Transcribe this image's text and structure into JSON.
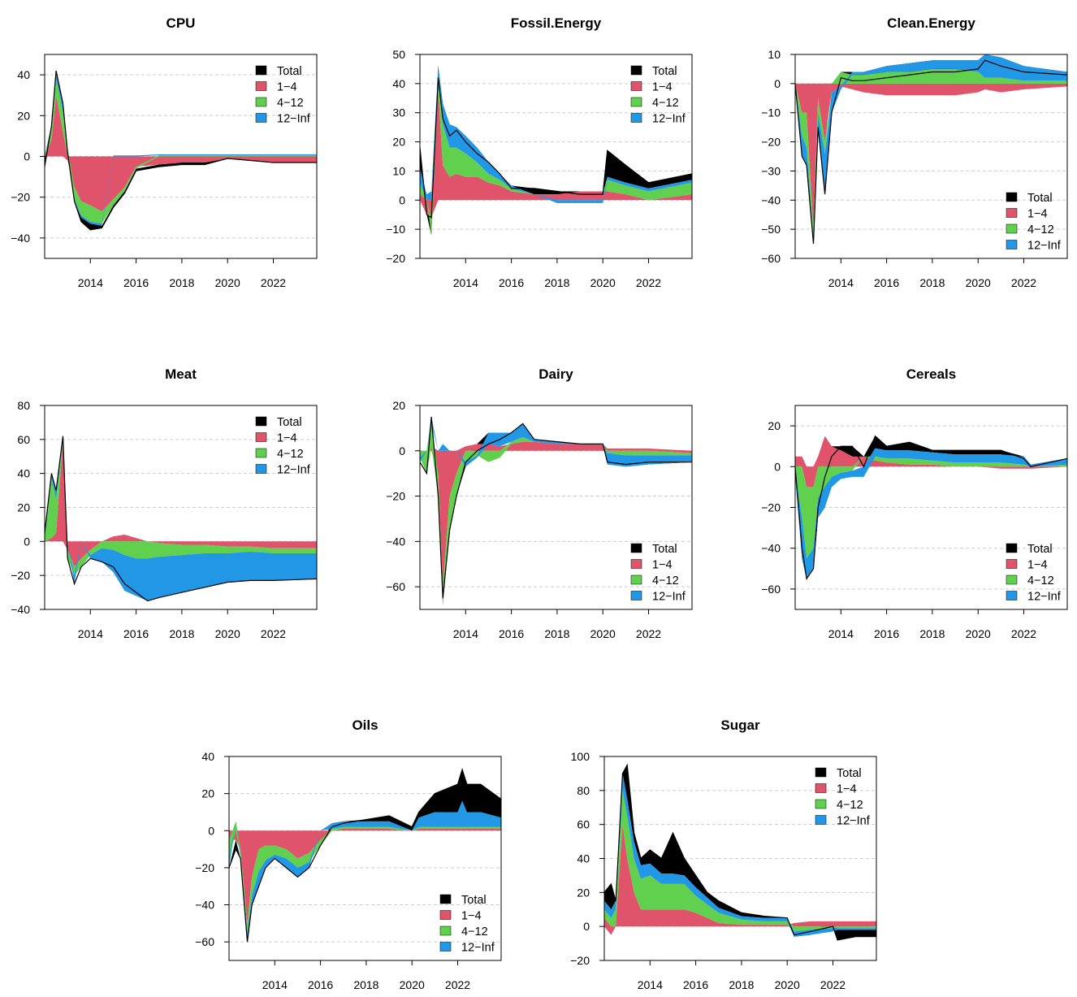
{
  "colors": {
    "Total": "#000000",
    "1-4": "#DF536B",
    "4-12": "#61D04F",
    "12-Inf": "#2297E6",
    "grid": "#CCCCCC"
  },
  "chart_data": [
    {
      "type": "area",
      "title": "CPU",
      "ylim": [
        -50,
        50
      ],
      "yticks": [
        -40,
        -20,
        0,
        20,
        40
      ],
      "xticks": [
        2014,
        2016,
        2018,
        2020,
        2022
      ],
      "xlim": [
        2012.0,
        2023.9
      ],
      "legend_position": "top-right",
      "stacked": true,
      "x": [
        2012.0,
        2012.3,
        2012.5,
        2012.8,
        2013.0,
        2013.3,
        2013.6,
        2014.0,
        2014.5,
        2015.0,
        2015.5,
        2016.0,
        2017.0,
        2018.0,
        2019.0,
        2020.0,
        2021.0,
        2022.0,
        2023.9
      ],
      "series": [
        {
          "name": "Total",
          "values": [
            -5,
            15,
            42,
            26,
            2,
            -22,
            -32,
            -36,
            -35,
            -25,
            -18,
            -7,
            -5,
            -4,
            -4,
            -1,
            -2,
            -3,
            -3
          ]
        },
        {
          "name": "1−4",
          "values": [
            0,
            8,
            30,
            12,
            -2,
            -15,
            -22,
            -24,
            -27,
            -21,
            -15,
            -5,
            -4,
            -3,
            -3,
            -1,
            -2,
            -3,
            -3
          ]
        },
        {
          "name": "4−12",
          "values": [
            0,
            5,
            8,
            10,
            4,
            -6,
            -7,
            -8,
            -6,
            -3,
            -2,
            -1,
            0.5,
            0.5,
            0.5,
            0.5,
            0.5,
            0.5,
            0.5
          ]
        },
        {
          "name": "12−Inf",
          "values": [
            0,
            2,
            4,
            4,
            0,
            -1,
            -1,
            -1,
            -1,
            0.5,
            0.5,
            0.5,
            0.5,
            0.5,
            0.5,
            0.5,
            0.5,
            0.5,
            0.5
          ]
        }
      ]
    },
    {
      "type": "area",
      "title": "Fossil.Energy",
      "ylim": [
        -20,
        50
      ],
      "yticks": [
        -20,
        -10,
        0,
        10,
        20,
        30,
        40,
        50
      ],
      "xticks": [
        2014,
        2016,
        2018,
        2020,
        2022
      ],
      "xlim": [
        2012.0,
        2023.9
      ],
      "legend_position": "top-right",
      "stacked": true,
      "x": [
        2012.0,
        2012.3,
        2012.5,
        2012.8,
        2013.0,
        2013.3,
        2013.6,
        2014.0,
        2014.5,
        2015.0,
        2015.5,
        2016.0,
        2017.0,
        2018.0,
        2019.0,
        2020.0,
        2020.2,
        2021.0,
        2022.0,
        2023.9
      ],
      "series": [
        {
          "name": "Total",
          "values": [
            18,
            -5,
            -6,
            42,
            28,
            22,
            24,
            20,
            16,
            13,
            9,
            4,
            4,
            3,
            2,
            2,
            17,
            12,
            6,
            9
          ]
        },
        {
          "name": "1−4",
          "values": [
            2,
            -5,
            -6,
            38,
            12,
            8,
            9,
            8,
            8,
            6,
            5,
            3,
            2,
            2,
            3,
            3,
            3,
            2,
            0,
            2
          ]
        },
        {
          "name": "4−12",
          "values": [
            4,
            0,
            -6,
            4,
            14,
            10,
            9,
            8,
            5,
            3,
            2,
            1,
            0,
            0,
            0,
            0,
            4,
            3,
            3,
            4
          ]
        },
        {
          "name": "12−Inf",
          "values": [
            5,
            2,
            3,
            4,
            7,
            8,
            7,
            6,
            5,
            4,
            2,
            1,
            0,
            -1,
            -1,
            -1,
            1,
            1,
            1,
            1
          ]
        }
      ]
    },
    {
      "type": "area",
      "title": "Clean.Energy",
      "ylim": [
        -60,
        10
      ],
      "yticks": [
        -60,
        -50,
        -40,
        -30,
        -20,
        -10,
        0,
        10
      ],
      "xticks": [
        2014,
        2016,
        2018,
        2020,
        2022
      ],
      "xlim": [
        2012.0,
        2023.9
      ],
      "legend_position": "bottom-right",
      "stacked": true,
      "x": [
        2012.0,
        2012.3,
        2012.5,
        2012.8,
        2013.0,
        2013.3,
        2013.6,
        2014.0,
        2014.5,
        2015.0,
        2016.0,
        2017.0,
        2018.0,
        2019.0,
        2020.0,
        2020.3,
        2021.0,
        2022.0,
        2023.9
      ],
      "series": [
        {
          "name": "Total",
          "values": [
            0,
            -25,
            -28,
            -55,
            -15,
            -38,
            -10,
            2,
            1,
            1,
            2,
            3,
            4,
            4,
            5,
            8,
            6,
            4,
            3
          ]
        },
        {
          "name": "1−4",
          "values": [
            0,
            -10,
            -10,
            -50,
            -5,
            -20,
            -3,
            -1,
            -2,
            -3,
            -4,
            -4,
            -4,
            -4,
            -3,
            -2,
            -3,
            -2,
            -1
          ]
        },
        {
          "name": "4−12",
          "values": [
            0,
            -8,
            -12,
            -4,
            -5,
            -4,
            0,
            4,
            3,
            3,
            4,
            4,
            5,
            5,
            4,
            2,
            2,
            1,
            1
          ]
        },
        {
          "name": "12−Inf",
          "values": [
            0,
            -7,
            -6,
            -1,
            -5,
            -14,
            -7,
            -1,
            1,
            1,
            2,
            3,
            3,
            3,
            4,
            8,
            7,
            5,
            3
          ]
        }
      ]
    },
    {
      "type": "area",
      "title": "Meat",
      "ylim": [
        -40,
        80
      ],
      "yticks": [
        -40,
        -20,
        0,
        20,
        40,
        60,
        80
      ],
      "xticks": [
        2014,
        2016,
        2018,
        2020,
        2022
      ],
      "xlim": [
        2012.0,
        2023.9
      ],
      "legend_position": "top-right",
      "stacked": true,
      "x": [
        2012.0,
        2012.3,
        2012.5,
        2012.8,
        2013.0,
        2013.3,
        2013.6,
        2014.0,
        2014.5,
        2015.0,
        2015.5,
        2016.0,
        2016.5,
        2017.0,
        2018.0,
        2019.0,
        2020.0,
        2021.0,
        2022.0,
        2023.9
      ],
      "series": [
        {
          "name": "Total",
          "values": [
            5,
            40,
            30,
            62,
            -10,
            -25,
            -15,
            -10,
            -12,
            -15,
            -25,
            -30,
            -35,
            -33,
            -30,
            -27,
            -24,
            -23,
            -23,
            -22
          ]
        },
        {
          "name": "1−4",
          "values": [
            0,
            2,
            5,
            60,
            -5,
            -15,
            -10,
            -5,
            0,
            3,
            4,
            2,
            0,
            -1,
            -2,
            -2,
            -3,
            -3,
            -4,
            -4
          ]
        },
        {
          "name": "4−12",
          "values": [
            2,
            35,
            20,
            0,
            -5,
            -5,
            -5,
            -3,
            -4,
            -5,
            -8,
            -10,
            -10,
            -8,
            -6,
            -5,
            -4,
            -3,
            -3,
            -3
          ]
        },
        {
          "name": "12−Inf",
          "values": [
            3,
            3,
            5,
            2,
            0,
            -5,
            0,
            -2,
            -8,
            -13,
            -21,
            -22,
            -25,
            -24,
            -22,
            -20,
            -17,
            -17,
            -16,
            -15
          ]
        }
      ]
    },
    {
      "type": "area",
      "title": "Dairy",
      "ylim": [
        -70,
        20
      ],
      "yticks": [
        -60,
        -40,
        -20,
        0,
        20
      ],
      "xticks": [
        2014,
        2016,
        2018,
        2020,
        2022
      ],
      "xlim": [
        2012.0,
        2023.9
      ],
      "legend_position": "bottom-right",
      "stacked": true,
      "x": [
        2012.0,
        2012.3,
        2012.5,
        2012.8,
        2013.0,
        2013.3,
        2013.6,
        2014.0,
        2014.5,
        2015.0,
        2015.5,
        2016.0,
        2016.5,
        2017.0,
        2018.0,
        2019.0,
        2020.0,
        2020.2,
        2021.0,
        2022.0,
        2023.9
      ],
      "series": [
        {
          "name": "Total",
          "values": [
            -5,
            -10,
            15,
            -20,
            -65,
            -35,
            -20,
            -5,
            0,
            3,
            5,
            8,
            12,
            5,
            4,
            3,
            3,
            -5,
            -6,
            -5,
            -5
          ]
        },
        {
          "name": "1−4",
          "values": [
            0,
            0,
            2,
            -10,
            -60,
            -20,
            -10,
            2,
            3,
            3,
            2,
            3,
            4,
            4,
            3,
            3,
            3,
            1,
            1,
            1,
            -1
          ]
        },
        {
          "name": "4−12",
          "values": [
            -3,
            -10,
            10,
            -10,
            -8,
            -15,
            -10,
            -5,
            -2,
            -5,
            -3,
            1,
            2,
            0,
            0,
            0,
            0,
            -1,
            -2,
            -2,
            -1
          ]
        },
        {
          "name": "12−Inf",
          "values": [
            -2,
            0,
            3,
            0,
            3,
            0,
            0,
            -2,
            -1,
            5,
            6,
            4,
            6,
            1,
            1,
            0,
            0,
            -5,
            -5,
            -4,
            -3
          ]
        }
      ]
    },
    {
      "type": "area",
      "title": "Cereals",
      "ylim": [
        -70,
        30
      ],
      "yticks": [
        -60,
        -40,
        -20,
        0,
        20
      ],
      "xticks": [
        2014,
        2016,
        2018,
        2020,
        2022
      ],
      "xlim": [
        2012.0,
        2023.9
      ],
      "legend_position": "bottom-right",
      "stacked": true,
      "x": [
        2012.0,
        2012.3,
        2012.5,
        2012.8,
        2013.0,
        2013.3,
        2013.6,
        2014.0,
        2014.5,
        2015.0,
        2015.5,
        2016.0,
        2017.0,
        2018.0,
        2019.0,
        2020.0,
        2021.0,
        2022.0,
        2022.3,
        2023.9
      ],
      "series": [
        {
          "name": "Total",
          "values": [
            0,
            -40,
            -55,
            -50,
            -20,
            -5,
            5,
            10,
            10,
            0,
            15,
            10,
            12,
            8,
            8,
            8,
            8,
            4,
            0,
            4
          ]
        },
        {
          "name": "1−4",
          "values": [
            5,
            5,
            -10,
            -10,
            5,
            15,
            10,
            8,
            5,
            5,
            3,
            2,
            1,
            1,
            0,
            0,
            -1,
            -1,
            -1,
            0
          ]
        },
        {
          "name": "4−12",
          "values": [
            -3,
            -25,
            -35,
            -30,
            -15,
            -10,
            -5,
            -3,
            -2,
            0,
            2,
            2,
            3,
            2,
            2,
            2,
            2,
            1,
            0,
            1
          ]
        },
        {
          "name": "12−Inf",
          "values": [
            -2,
            -20,
            -10,
            -10,
            -10,
            -10,
            -5,
            -3,
            -3,
            -5,
            4,
            4,
            4,
            4,
            4,
            4,
            4,
            4,
            1,
            3
          ]
        }
      ]
    },
    {
      "type": "area",
      "title": "Oils",
      "ylim": [
        -70,
        40
      ],
      "yticks": [
        -60,
        -40,
        -20,
        0,
        20,
        40
      ],
      "xticks": [
        2014,
        2016,
        2018,
        2020,
        2022
      ],
      "xlim": [
        2012.0,
        2023.9
      ],
      "legend_position": "bottom-right",
      "stacked": true,
      "x": [
        2012.0,
        2012.3,
        2012.5,
        2012.8,
        2013.0,
        2013.3,
        2013.6,
        2014.0,
        2014.5,
        2015.0,
        2015.5,
        2016.0,
        2016.5,
        2017.0,
        2018.0,
        2019.0,
        2020.0,
        2020.3,
        2021.0,
        2022.0,
        2022.2,
        2022.4,
        2023.0,
        2023.9
      ],
      "series": [
        {
          "name": "Total",
          "values": [
            -20,
            -10,
            -15,
            -60,
            -40,
            -30,
            -20,
            -15,
            -20,
            -25,
            -20,
            -8,
            2,
            4,
            6,
            8,
            2,
            10,
            20,
            25,
            33,
            25,
            25,
            17
          ]
        },
        {
          "name": "1−4",
          "values": [
            -5,
            -5,
            -10,
            -50,
            -25,
            -10,
            -8,
            -8,
            -10,
            -15,
            -12,
            -5,
            0,
            1,
            1,
            1,
            0,
            1,
            1,
            1,
            1,
            1,
            1,
            1
          ]
        },
        {
          "name": "4−12",
          "values": [
            -10,
            5,
            -3,
            -5,
            -10,
            -12,
            -8,
            -5,
            -5,
            -5,
            -5,
            -3,
            1,
            1,
            1,
            1,
            0,
            1,
            1,
            1,
            1,
            1,
            1,
            1
          ]
        },
        {
          "name": "12−Inf",
          "values": [
            -5,
            0,
            -2,
            -5,
            -5,
            -8,
            -4,
            -2,
            -5,
            -5,
            -3,
            0,
            3,
            3,
            3,
            3,
            0,
            5,
            8,
            8,
            14,
            8,
            8,
            5
          ]
        }
      ]
    },
    {
      "type": "area",
      "title": "Sugar",
      "ylim": [
        -20,
        100
      ],
      "yticks": [
        -20,
        0,
        20,
        40,
        60,
        80,
        100
      ],
      "xticks": [
        2014,
        2016,
        2018,
        2020,
        2022
      ],
      "xlim": [
        2012.0,
        2023.9
      ],
      "legend_position": "top-right",
      "stacked": true,
      "x": [
        2012.0,
        2012.3,
        2012.5,
        2012.8,
        2013.0,
        2013.3,
        2013.6,
        2014.0,
        2014.5,
        2015.0,
        2015.5,
        2016.0,
        2016.5,
        2017.0,
        2018.0,
        2019.0,
        2020.0,
        2020.3,
        2021.0,
        2022.0,
        2022.2,
        2023.0,
        2023.9
      ],
      "series": [
        {
          "name": "Total",
          "values": [
            20,
            25,
            15,
            90,
            95,
            55,
            40,
            45,
            40,
            55,
            40,
            30,
            20,
            15,
            8,
            6,
            5,
            -5,
            -3,
            0,
            -8,
            -6,
            -6
          ]
        },
        {
          "name": "1−4",
          "values": [
            5,
            -5,
            0,
            60,
            40,
            20,
            10,
            10,
            10,
            10,
            10,
            8,
            5,
            2,
            1,
            1,
            1,
            2,
            3,
            3,
            3,
            3,
            3
          ]
        },
        {
          "name": "4−12",
          "values": [
            5,
            5,
            10,
            20,
            25,
            20,
            18,
            20,
            15,
            15,
            15,
            10,
            8,
            6,
            3,
            2,
            2,
            -3,
            -2,
            -1,
            -1,
            -1,
            -1
          ]
        },
        {
          "name": "12−Inf",
          "values": [
            5,
            5,
            5,
            10,
            10,
            10,
            8,
            7,
            6,
            6,
            5,
            5,
            4,
            3,
            2,
            2,
            2,
            -3,
            -3,
            -2,
            -1,
            -1,
            -1
          ]
        }
      ]
    }
  ]
}
